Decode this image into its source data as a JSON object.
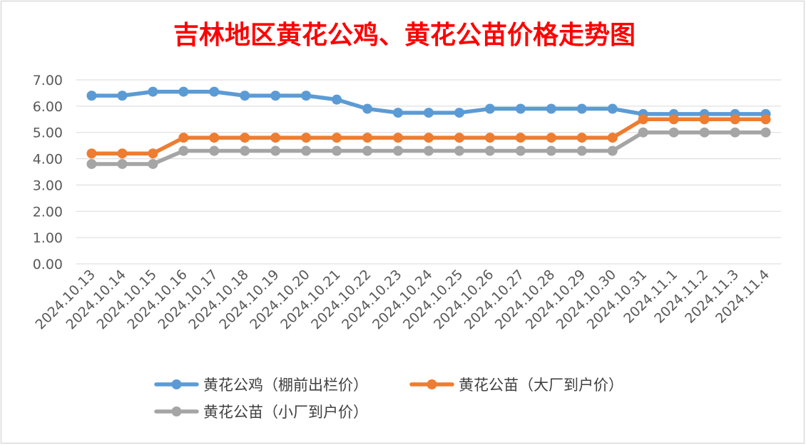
{
  "chart_data": {
    "type": "line",
    "title": "吉林地区黄花公鸡、黄花公苗价格走势图",
    "xlabel": "",
    "ylabel": "",
    "ylim": [
      0,
      7
    ],
    "yticks": [
      "0.00",
      "1.00",
      "2.00",
      "3.00",
      "4.00",
      "5.00",
      "6.00",
      "7.00"
    ],
    "grid": true,
    "legend_position": "bottom",
    "categories": [
      "2024.10.13",
      "2024.10.14",
      "2024.10.15",
      "2024.10.16",
      "2024.10.17",
      "2024.10.18",
      "2024.10.19",
      "2024.10.20",
      "2024.10.21",
      "2024.10.22",
      "2024.10.23",
      "2024.10.24",
      "2024.10.25",
      "2024.10.26",
      "2024.10.27",
      "2024.10.28",
      "2024.10.29",
      "2024.10.30",
      "2024.10.31",
      "2024.11.1",
      "2024.11.2",
      "2024.11.3",
      "2024.11.4"
    ],
    "series": [
      {
        "name": "黄花公鸡（棚前出栏价）",
        "color": "#5B9BD5",
        "values": [
          6.4,
          6.4,
          6.55,
          6.55,
          6.55,
          6.4,
          6.4,
          6.4,
          6.25,
          5.9,
          5.75,
          5.75,
          5.75,
          5.9,
          5.9,
          5.9,
          5.9,
          5.9,
          5.7,
          5.7,
          5.7,
          5.7,
          5.7
        ]
      },
      {
        "name": "黄花公苗（大厂到户价）",
        "color": "#ED7D31",
        "values": [
          4.2,
          4.2,
          4.2,
          4.8,
          4.8,
          4.8,
          4.8,
          4.8,
          4.8,
          4.8,
          4.8,
          4.8,
          4.8,
          4.8,
          4.8,
          4.8,
          4.8,
          4.8,
          5.5,
          5.5,
          5.5,
          5.5,
          5.5
        ]
      },
      {
        "name": "黄花公苗（小厂到户价）",
        "color": "#A5A5A5",
        "values": [
          3.8,
          3.8,
          3.8,
          4.3,
          4.3,
          4.3,
          4.3,
          4.3,
          4.3,
          4.3,
          4.3,
          4.3,
          4.3,
          4.3,
          4.3,
          4.3,
          4.3,
          4.3,
          5.0,
          5.0,
          5.0,
          5.0,
          5.0
        ]
      }
    ]
  },
  "colors": {
    "title": "#FF0000",
    "grid": "#D9D9D9",
    "border": "#D9D9D9"
  }
}
